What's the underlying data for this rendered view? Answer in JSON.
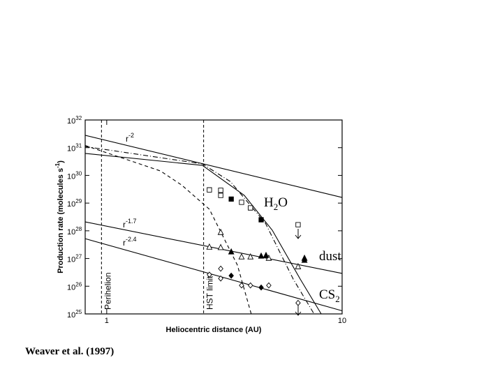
{
  "chart_data": {
    "type": "line",
    "xlabel": "Heliocentric distance (AU)",
    "ylabel": [
      "Production rate (molecules s",
      "-1",
      ")"
    ],
    "xlim": [
      0.81,
      10
    ],
    "ylim": [
      1e+25,
      1e+32
    ],
    "xlog": true,
    "ylog": true,
    "xticks": [
      1,
      10
    ],
    "yticks": [
      {
        "value": 1e+25,
        "label": "10",
        "exp": "25"
      },
      {
        "value": 1e+26,
        "label": "10",
        "exp": "26"
      },
      {
        "value": 1e+27,
        "label": "10",
        "exp": "27"
      },
      {
        "value": 1e+28,
        "label": "10",
        "exp": "28"
      },
      {
        "value": 1e+29,
        "label": "10",
        "exp": "29"
      },
      {
        "value": 1e+30,
        "label": "10",
        "exp": "30"
      },
      {
        "value": 1e+31,
        "label": "10",
        "exp": "31"
      },
      {
        "value": 1e+32,
        "label": "10",
        "exp": "32"
      }
    ],
    "vlines": [
      {
        "x": 0.95,
        "label": "Perihelion"
      },
      {
        "x": 2.58,
        "label": "HST limit"
      }
    ],
    "series": [
      {
        "kind": "line",
        "dash": "solid",
        "color": "#000",
        "x": [
          0.81,
          10
        ],
        "values": [
          2.8e+31,
          1.6e+29
        ]
      },
      {
        "kind": "line",
        "dash": "solid",
        "color": "#000",
        "x": [
          0.81,
          10
        ],
        "values": [
          2.1e+28,
          2.9e+26
        ]
      },
      {
        "kind": "line",
        "dash": "solid",
        "color": "#000",
        "x": [
          0.81,
          10
        ],
        "values": [
          5.2e+27,
          1.3e+25
        ]
      },
      {
        "kind": "line",
        "dash": "solid",
        "color": "#000",
        "x": [
          0.81,
          2.55,
          3.84,
          5.05,
          6.64,
          8.15
        ],
        "values": [
          6.2e+30,
          2.3e+30,
          1.9e+29,
          1.05e+28,
          1.8e+26,
          1e+25
        ]
      },
      {
        "kind": "line",
        "dash": "dashed",
        "color": "#000",
        "x": [
          0.81,
          1.69,
          2.08,
          2.73,
          3.59,
          4.11
        ],
        "values": [
          1.2e+31,
          1.45e+30,
          4.5e+29,
          6e+28,
          5.8e+26,
          1e+25
        ]
      },
      {
        "kind": "line",
        "dash": "dashdot",
        "color": "#000",
        "x": [
          0.81,
          2.55,
          3.35,
          4.72,
          6.2,
          7.6
        ],
        "values": [
          1.1e+31,
          2.6e+30,
          6e+29,
          1.9e+28,
          1.8e+26,
          1e+25
        ]
      },
      {
        "kind": "scatter",
        "marker": "square",
        "filled": false,
        "color": "#000",
        "x": [
          2.73,
          3.05,
          3.05,
          3.74,
          4.08,
          6.5
        ],
        "values": [
          3e+29,
          2.9e+29,
          1.9e+29,
          1.07e+29,
          6.7e+28,
          1.66e+28
        ]
      },
      {
        "kind": "scatter",
        "marker": "square",
        "filled": true,
        "color": "#000",
        "x": [
          3.38,
          4.53
        ],
        "values": [
          1.4e+29,
          2.5e+28
        ]
      },
      {
        "kind": "scatter",
        "marker": "triangle",
        "filled": false,
        "color": "#000",
        "x": [
          3.05,
          2.73,
          3.05,
          3.74,
          4.08,
          4.88,
          6.5
        ],
        "values": [
          8.8e+27,
          2.6e+27,
          2.5e+27,
          1.15e+27,
          1.15e+27,
          1.03e+27,
          5.1e+26
        ]
      },
      {
        "kind": "scatter",
        "marker": "triangle",
        "filled": true,
        "color": "#000",
        "x": [
          3.38,
          4.53,
          4.75,
          6.92,
          6.92
        ],
        "values": [
          1.74e+27,
          1.23e+27,
          1.3e+27,
          1.03e+27,
          8.7e+26
        ]
      },
      {
        "kind": "scatter",
        "marker": "diamond",
        "filled": false,
        "color": "#000",
        "x": [
          2.73,
          3.05,
          3.05,
          3.74,
          4.08,
          4.88,
          6.5
        ],
        "values": [
          2.6e+26,
          1.9e+26,
          4.3e+26,
          1.07e+26,
          1.07e+26,
          1.07e+26,
          2.5e+25
        ]
      },
      {
        "kind": "scatter",
        "marker": "diamond",
        "filled": true,
        "color": "#000",
        "x": [
          3.38,
          4.53
        ],
        "values": [
          2.4e+26,
          9e+25
        ]
      }
    ],
    "r_labels": [
      {
        "base": "r",
        "exp": "-2"
      },
      {
        "base": "r",
        "exp": "-1.7"
      },
      {
        "base": "r",
        "exp": "-2.4"
      }
    ],
    "species_labels": {
      "h2o": [
        "H",
        "2",
        "O"
      ],
      "dust": "dust",
      "cs2": [
        "CS",
        "2"
      ]
    }
  },
  "footer": "Weaver et al. (1997)"
}
